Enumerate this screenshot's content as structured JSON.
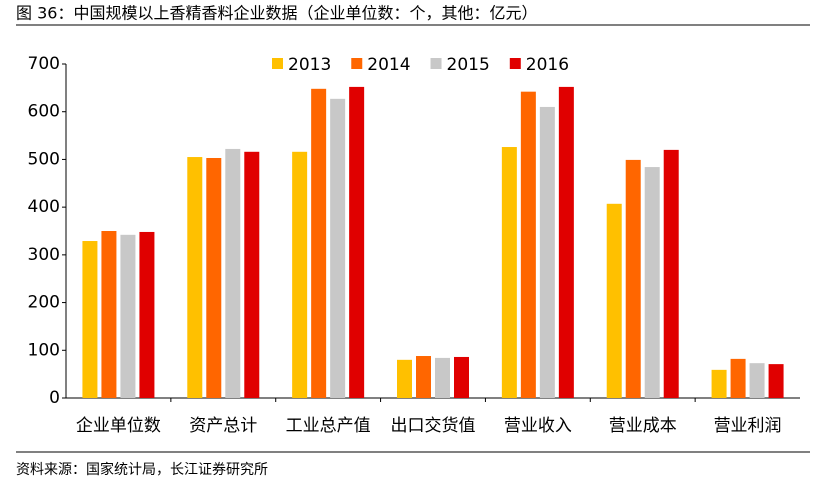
{
  "chart_data": {
    "type": "bar",
    "title": "图 36：中国规模以上香精香料企业数据（企业单位数：个，其他：亿元）",
    "source": "资料来源：国家统计局，长江证券研究所",
    "categories": [
      "企业单位数",
      "资产总计",
      "工业总产值",
      "出口交货值",
      "营业收入",
      "营业成本",
      "营业利润"
    ],
    "series": [
      {
        "name": "2013",
        "color": "#ffc000",
        "values": [
          329,
          505,
          516,
          80,
          526,
          407,
          59
        ]
      },
      {
        "name": "2014",
        "color": "#ff6600",
        "values": [
          350,
          503,
          648,
          88,
          642,
          499,
          82
        ]
      },
      {
        "name": "2015",
        "color": "#c8c8c8",
        "values": [
          342,
          522,
          627,
          84,
          610,
          484,
          73
        ]
      },
      {
        "name": "2016",
        "color": "#e00000",
        "values": [
          348,
          516,
          652,
          86,
          652,
          520,
          71
        ]
      }
    ],
    "ylim": [
      0,
      700
    ],
    "yticks": [
      0,
      100,
      200,
      300,
      400,
      500,
      600,
      700
    ],
    "grid": false
  }
}
